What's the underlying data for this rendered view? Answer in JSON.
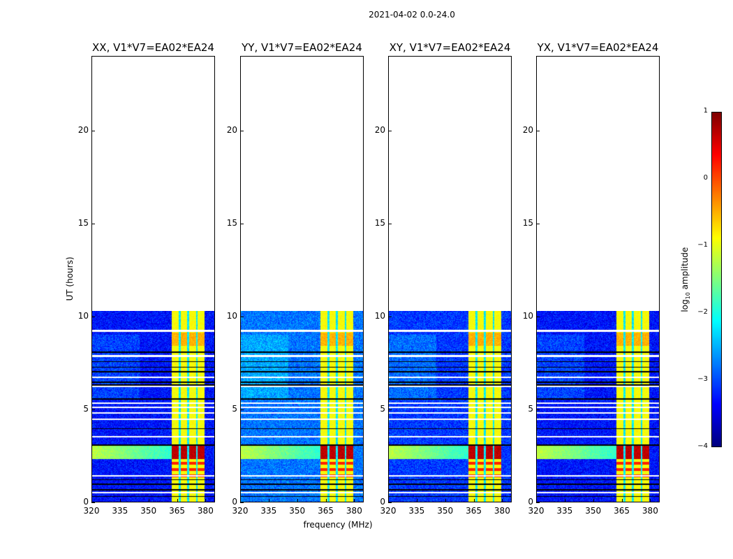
{
  "chart_data": {
    "type": "heatmap",
    "title": "2021-04-02 0.0-24.0",
    "xlabel": "frequency (MHz)",
    "ylabel": "UT (hours)",
    "xlim": [
      320,
      385
    ],
    "ylim": [
      0,
      24
    ],
    "xticks": [
      "320",
      "335",
      "350",
      "365",
      "380"
    ],
    "yticks": [
      "0",
      "5",
      "10",
      "15",
      "20"
    ],
    "data_time_range_hours": [
      0,
      10.25
    ],
    "bright_subbands_mhz": [
      [
        362,
        366
      ],
      [
        367,
        370.5
      ],
      [
        371.5,
        375
      ],
      [
        376,
        379.5
      ]
    ],
    "rfi_burst_hours": [
      2.3,
      3.1
    ],
    "flagged_white_rows_hours": [
      0.5,
      1.4,
      3.5,
      4.45,
      4.8,
      5.1,
      5.3,
      6.2,
      6.7,
      7.85,
      9.2
    ],
    "black_rows_hours": [
      0.3,
      0.65,
      0.95,
      1.2,
      3.05,
      3.95,
      5.55,
      6.3,
      6.45,
      7.0,
      7.25,
      7.55,
      8.05
    ],
    "panels": [
      {
        "title": "XX, V1*V7=EA02*EA24",
        "base_log_amp": -3.3
      },
      {
        "title": "YY, V1*V7=EA02*EA24",
        "base_log_amp": -2.8
      },
      {
        "title": "XY, V1*V7=EA02*EA24",
        "base_log_amp": -3.1
      },
      {
        "title": "YX, V1*V7=EA02*EA24",
        "base_log_amp": -3.3
      }
    ],
    "colorbar": {
      "label": "log10 amplitude",
      "label_main": "log",
      "label_sub": "10",
      "label_rest": " amplitude",
      "range": [
        -4,
        1
      ],
      "ticks": [
        "1",
        "0",
        "−1",
        "−2",
        "−3",
        "−4"
      ],
      "colormap": "jet"
    }
  }
}
